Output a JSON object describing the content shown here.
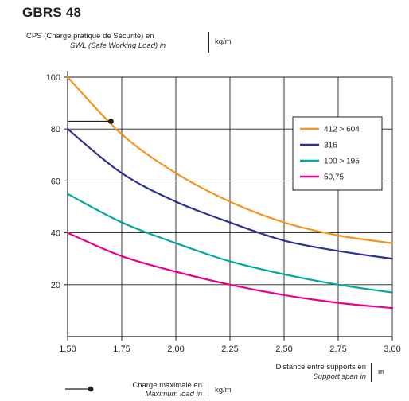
{
  "chart_data": {
    "type": "line",
    "title": "GBRS 48",
    "ylabel": {
      "line1": "CPS (Charge pratique de Sécurité) en",
      "line2": "SWL (Safe Working Load) in",
      "unit": "kg/m"
    },
    "xlabel": {
      "line1": "Distance entre supports en",
      "line2": "Support span in",
      "unit": "m"
    },
    "xlim": [
      1.5,
      3.0
    ],
    "ylim": [
      0,
      100
    ],
    "x_ticks": [
      "1,50",
      "1,75",
      "2,00",
      "2,25",
      "2,50",
      "2,75",
      "3,00"
    ],
    "y_ticks": [
      "20",
      "40",
      "60",
      "80",
      "100"
    ],
    "grid": true,
    "legend_position": "right",
    "x": [
      1.5,
      1.75,
      2.0,
      2.25,
      2.5,
      2.75,
      3.0
    ],
    "series": [
      {
        "name": "412 > 604",
        "color": "#f7941d",
        "values": [
          100,
          78,
          63,
          52,
          44,
          39,
          36
        ]
      },
      {
        "name": "316",
        "color": "#2e3192",
        "values": [
          80,
          63,
          52,
          44,
          37,
          33,
          30
        ]
      },
      {
        "name": "100 > 195",
        "color": "#00a99d",
        "values": [
          55,
          44,
          36,
          29,
          24,
          20,
          17
        ]
      },
      {
        "name": "50,75",
        "color": "#ec008c",
        "values": [
          40,
          31,
          25,
          20,
          16,
          13,
          11
        ]
      }
    ],
    "max_load_point": {
      "x": 1.7,
      "y": 83
    },
    "max_load_label": {
      "line1": "Charge maximale en",
      "line2": "Maximum load in",
      "unit": "kg/m"
    }
  }
}
